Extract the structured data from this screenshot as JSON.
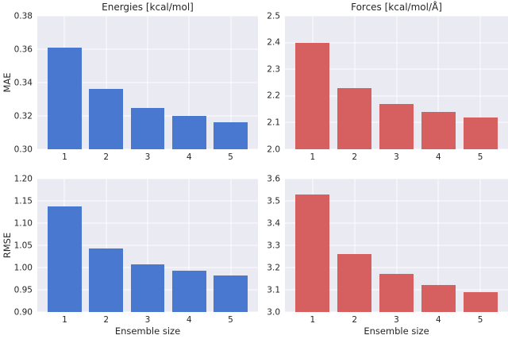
{
  "figure": {
    "colors": {
      "background": "#ffffff",
      "plot_background": "#eaeaf2",
      "grid": "#ffffff",
      "text": "#262626",
      "blue": "#4878cf",
      "red": "#d65f5f"
    }
  },
  "chart_data": [
    {
      "id": "energies-mae",
      "type": "bar",
      "title": "Energies [kcal/mol]",
      "ylabel": "MAE",
      "xlabel": "",
      "categories": [
        "1",
        "2",
        "3",
        "4",
        "5"
      ],
      "values": [
        0.361,
        0.336,
        0.325,
        0.32,
        0.316
      ],
      "ylim": [
        0.3,
        0.38
      ],
      "yticks": [
        0.3,
        0.32,
        0.34,
        0.36,
        0.38
      ],
      "ytick_labels": [
        "0.30",
        "0.32",
        "0.34",
        "0.36",
        "0.38"
      ],
      "bar_color": "#4878cf",
      "grid": true,
      "legend": false
    },
    {
      "id": "forces-mae",
      "type": "bar",
      "title": "Forces [kcal/mol/Å]",
      "ylabel": "",
      "xlabel": "",
      "categories": [
        "1",
        "2",
        "3",
        "4",
        "5"
      ],
      "values": [
        2.4,
        2.23,
        2.17,
        2.14,
        2.12
      ],
      "ylim": [
        2.0,
        2.5
      ],
      "yticks": [
        2.0,
        2.1,
        2.2,
        2.3,
        2.4,
        2.5
      ],
      "ytick_labels": [
        "2.0",
        "2.1",
        "2.2",
        "2.3",
        "2.4",
        "2.5"
      ],
      "bar_color": "#d65f5f",
      "grid": true,
      "legend": false
    },
    {
      "id": "energies-rmse",
      "type": "bar",
      "title": "",
      "ylabel": "RMSE",
      "xlabel": "Ensemble size",
      "categories": [
        "1",
        "2",
        "3",
        "4",
        "5"
      ],
      "values": [
        1.138,
        1.042,
        1.008,
        0.992,
        0.982
      ],
      "ylim": [
        0.9,
        1.2
      ],
      "yticks": [
        0.9,
        0.95,
        1.0,
        1.05,
        1.1,
        1.15,
        1.2
      ],
      "ytick_labels": [
        "0.90",
        "0.95",
        "1.00",
        "1.05",
        "1.10",
        "1.15",
        "1.20"
      ],
      "bar_color": "#4878cf",
      "grid": true,
      "legend": false
    },
    {
      "id": "forces-rmse",
      "type": "bar",
      "title": "",
      "ylabel": "",
      "xlabel": "Ensemble size",
      "categories": [
        "1",
        "2",
        "3",
        "4",
        "5"
      ],
      "values": [
        3.53,
        3.26,
        3.17,
        3.12,
        3.09
      ],
      "ylim": [
        3.0,
        3.6
      ],
      "yticks": [
        3.0,
        3.1,
        3.2,
        3.3,
        3.4,
        3.5,
        3.6
      ],
      "ytick_labels": [
        "3.0",
        "3.1",
        "3.2",
        "3.3",
        "3.4",
        "3.5",
        "3.6"
      ],
      "bar_color": "#d65f5f",
      "grid": true,
      "legend": false
    }
  ]
}
